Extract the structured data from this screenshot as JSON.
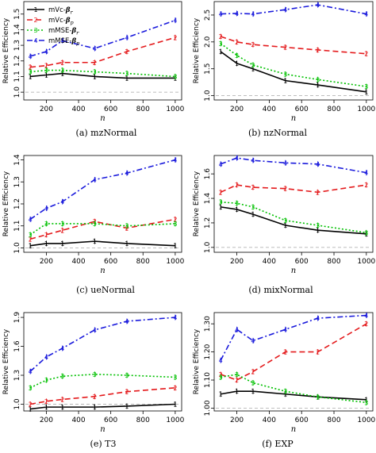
{
  "chart_data": [
    {
      "type": "line",
      "caption": "(a) mzNormal",
      "xlabel": "n",
      "ylabel": "Relative Efficiency",
      "x": [
        100,
        200,
        300,
        500,
        700,
        1000
      ],
      "xlim": [
        60,
        1040
      ],
      "ylim": [
        0.95,
        1.58
      ],
      "yticks": [
        "1.0",
        "1.1",
        "1.2",
        "1.3",
        "1.4",
        "1.5"
      ],
      "ytick_values": [
        1.0,
        1.1,
        1.2,
        1.3,
        1.4,
        1.5
      ],
      "xticks": [
        "200",
        "400",
        "600",
        "800",
        "1000"
      ],
      "xtick_values": [
        200,
        400,
        600,
        800,
        1000
      ],
      "reference_line": 1.0,
      "legend": "top-left",
      "series": [
        {
          "name": "mVc-β_r",
          "values": [
            1.1,
            1.11,
            1.12,
            1.1,
            1.09,
            1.09
          ]
        },
        {
          "name": "mVc-β_p",
          "values": [
            1.16,
            1.17,
            1.19,
            1.19,
            1.26,
            1.35
          ]
        },
        {
          "name": "mMSE-β_r",
          "values": [
            1.13,
            1.14,
            1.14,
            1.13,
            1.12,
            1.1
          ]
        },
        {
          "name": "mMSE-β_p",
          "values": [
            1.23,
            1.26,
            1.33,
            1.28,
            1.35,
            1.46
          ]
        }
      ]
    },
    {
      "type": "line",
      "caption": "(b) nzNormal",
      "xlabel": "n",
      "ylabel": "Relative Efficiency",
      "x": [
        100,
        200,
        300,
        500,
        700,
        1000
      ],
      "xlim": [
        60,
        1040
      ],
      "ylim": [
        0.92,
        2.75
      ],
      "yticks": [
        "1.0",
        "1.5",
        "2.0",
        "2.5"
      ],
      "ytick_values": [
        1.0,
        1.5,
        2.0,
        2.5
      ],
      "xticks": [
        "200",
        "400",
        "600",
        "800",
        "1000"
      ],
      "xtick_values": [
        200,
        400,
        600,
        800,
        1000
      ],
      "reference_line": 1.0,
      "series": [
        {
          "name": "mVc-β_r",
          "values": [
            1.82,
            1.6,
            1.5,
            1.28,
            1.2,
            1.07
          ]
        },
        {
          "name": "mVc-β_p",
          "values": [
            2.1,
            2.0,
            1.95,
            1.9,
            1.85,
            1.78
          ]
        },
        {
          "name": "mMSE-β_r",
          "values": [
            1.97,
            1.75,
            1.57,
            1.4,
            1.3,
            1.17
          ]
        },
        {
          "name": "mMSE-β_p",
          "values": [
            2.52,
            2.53,
            2.52,
            2.6,
            2.69,
            2.52
          ]
        }
      ]
    },
    {
      "type": "line",
      "caption": "(c) ueNormal",
      "xlabel": "n",
      "ylabel": "Relative Efficiency",
      "x": [
        100,
        200,
        300,
        500,
        700,
        1000
      ],
      "xlim": [
        60,
        1040
      ],
      "ylim": [
        0.98,
        1.42
      ],
      "yticks": [
        "1.0",
        "1.1",
        "1.2",
        "1.3",
        "1.4"
      ],
      "ytick_values": [
        1.0,
        1.1,
        1.2,
        1.3,
        1.4
      ],
      "xticks": [
        "200",
        "400",
        "600",
        "800",
        "1000"
      ],
      "xtick_values": [
        200,
        400,
        600,
        800,
        1000
      ],
      "reference_line": 1.0,
      "series": [
        {
          "name": "mVc-β_r",
          "values": [
            1.01,
            1.02,
            1.02,
            1.03,
            1.02,
            1.01
          ]
        },
        {
          "name": "mVc-β_p",
          "values": [
            1.04,
            1.06,
            1.08,
            1.12,
            1.09,
            1.13
          ]
        },
        {
          "name": "mMSE-β_r",
          "values": [
            1.06,
            1.11,
            1.11,
            1.11,
            1.1,
            1.11
          ]
        },
        {
          "name": "mMSE-β_p",
          "values": [
            1.13,
            1.18,
            1.21,
            1.31,
            1.34,
            1.4
          ]
        }
      ]
    },
    {
      "type": "line",
      "caption": "(d) mixNormal",
      "xlabel": "n",
      "ylabel": "Relative Efficiency",
      "x": [
        100,
        200,
        300,
        500,
        700,
        1000
      ],
      "xlim": [
        60,
        1040
      ],
      "ylim": [
        0.96,
        1.75
      ],
      "yticks": [
        "1.0",
        "1.2",
        "1.4",
        "1.6"
      ],
      "ytick_values": [
        1.0,
        1.2,
        1.4,
        1.6
      ],
      "xticks": [
        "200",
        "400",
        "600",
        "800",
        "1000"
      ],
      "xtick_values": [
        200,
        400,
        600,
        800,
        1000
      ],
      "reference_line": 1.0,
      "series": [
        {
          "name": "mVc-β_r",
          "values": [
            1.33,
            1.31,
            1.27,
            1.18,
            1.14,
            1.11
          ]
        },
        {
          "name": "mVc-β_p",
          "values": [
            1.45,
            1.51,
            1.49,
            1.48,
            1.45,
            1.51
          ]
        },
        {
          "name": "mMSE-β_r",
          "values": [
            1.37,
            1.36,
            1.33,
            1.22,
            1.18,
            1.12
          ]
        },
        {
          "name": "mMSE-β_p",
          "values": [
            1.68,
            1.73,
            1.71,
            1.69,
            1.68,
            1.61
          ]
        }
      ]
    },
    {
      "type": "line",
      "caption": "(e) T3",
      "xlabel": "n",
      "ylabel": "Relative Efficiency",
      "x": [
        100,
        200,
        300,
        500,
        700,
        1000
      ],
      "xlim": [
        60,
        1040
      ],
      "ylim": [
        0.93,
        1.95
      ],
      "yticks": [
        "1.0",
        "1.3",
        "1.6",
        "1.9"
      ],
      "ytick_values": [
        1.0,
        1.3,
        1.6,
        1.9
      ],
      "xticks": [
        "200",
        "400",
        "600",
        "800",
        "1000"
      ],
      "xtick_values": [
        200,
        400,
        600,
        800,
        1000
      ],
      "reference_line": 1.0,
      "series": [
        {
          "name": "mVc-β_r",
          "values": [
            0.95,
            0.97,
            0.97,
            0.97,
            0.98,
            1.0
          ]
        },
        {
          "name": "mVc-β_p",
          "values": [
            1.0,
            1.03,
            1.05,
            1.08,
            1.13,
            1.17
          ]
        },
        {
          "name": "mMSE-β_r",
          "values": [
            1.17,
            1.25,
            1.29,
            1.31,
            1.3,
            1.28
          ]
        },
        {
          "name": "mMSE-β_p",
          "values": [
            1.34,
            1.49,
            1.58,
            1.77,
            1.86,
            1.9
          ]
        }
      ]
    },
    {
      "type": "line",
      "caption": "(f) EXP",
      "xlabel": "n",
      "ylabel": "Relative Efficiency",
      "x": [
        100,
        200,
        300,
        500,
        700,
        1000
      ],
      "xlim": [
        60,
        1040
      ],
      "ylim": [
        0.99,
        1.34
      ],
      "yticks": [
        "1.00",
        "1.10",
        "1.20",
        "1.30"
      ],
      "ytick_values": [
        1.0,
        1.1,
        1.2,
        1.3
      ],
      "xticks": [
        "200",
        "400",
        "600",
        "800",
        "1000"
      ],
      "xtick_values": [
        200,
        400,
        600,
        800,
        1000
      ],
      "reference_line": 1.0,
      "series": [
        {
          "name": "mVc-β_r",
          "values": [
            1.05,
            1.06,
            1.06,
            1.05,
            1.04,
            1.03
          ]
        },
        {
          "name": "mVc-β_p",
          "values": [
            1.12,
            1.1,
            1.13,
            1.2,
            1.2,
            1.3
          ]
        },
        {
          "name": "mMSE-β_r",
          "values": [
            1.11,
            1.12,
            1.09,
            1.06,
            1.04,
            1.02
          ]
        },
        {
          "name": "mMSE-β_p",
          "values": [
            1.17,
            1.28,
            1.24,
            1.28,
            1.32,
            1.33
          ]
        }
      ]
    }
  ],
  "series_styles": [
    {
      "color": "#000000",
      "dash": "",
      "marker": "1"
    },
    {
      "color": "#e41a1c",
      "dash": "7 4",
      "marker": "2"
    },
    {
      "color": "#00c000",
      "dash": "2 2.5",
      "marker": "3"
    },
    {
      "color": "#1a1adc",
      "dash": "7 3 2 3",
      "marker": "4"
    }
  ],
  "legend_labels": [
    "mVc-",
    "mVc-",
    "mMSE-",
    "mMSE-"
  ],
  "legend_subscripts": [
    "r",
    "p",
    "r",
    "p"
  ]
}
